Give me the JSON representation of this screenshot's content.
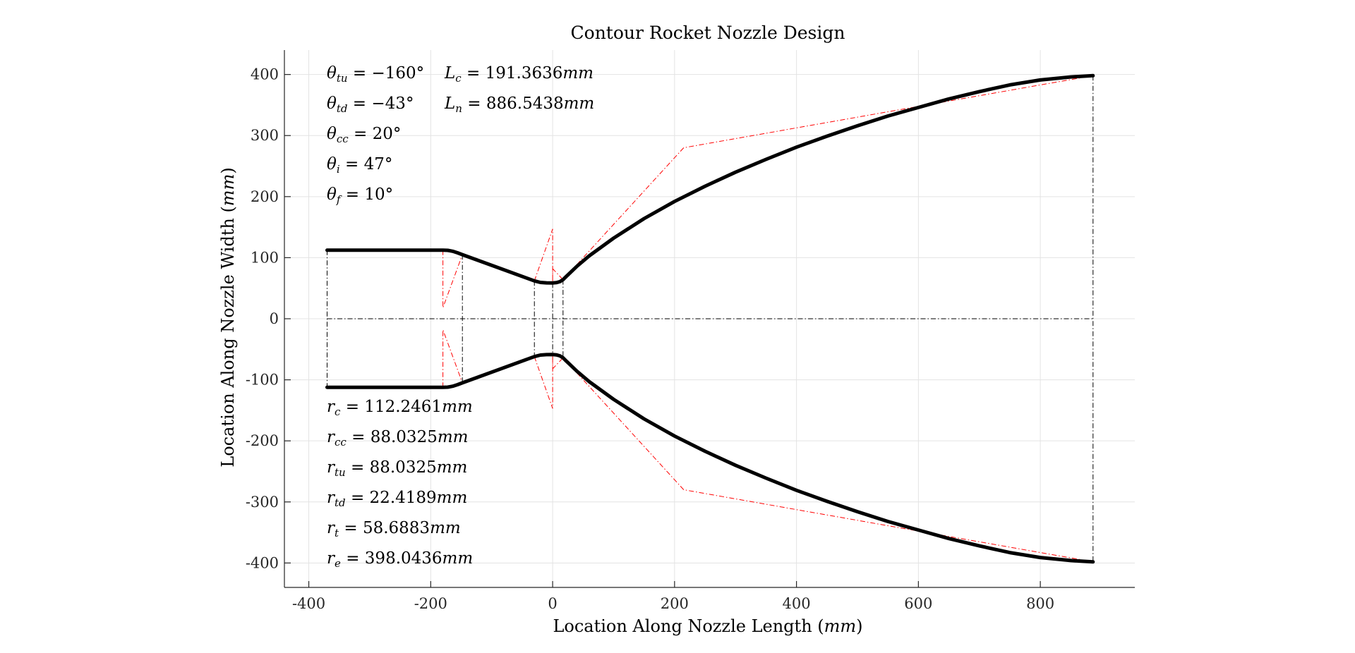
{
  "chart_data": {
    "type": "line",
    "title": "Contour Rocket Nozzle Design",
    "xlabel": "Location Along Nozzle Length",
    "xlabel_unit": "mm",
    "ylabel": "Location Along Nozzle Width",
    "ylabel_unit": "mm",
    "xlim": [
      -440,
      955
    ],
    "ylim": [
      -440,
      440
    ],
    "xticks": [
      -400,
      -200,
      0,
      200,
      400,
      600,
      800
    ],
    "yticks": [
      400,
      300,
      200,
      100,
      0,
      -100,
      -200,
      -300,
      -400
    ],
    "grid": true,
    "colors": {
      "contour": "#000000",
      "construction": "#ff0000",
      "reference": "#000000",
      "grid": "#e3e3e3"
    },
    "parameters": {
      "theta_tu": {
        "sym": "θ",
        "sub": "tu",
        "value": "−160°"
      },
      "theta_td": {
        "sym": "θ",
        "sub": "td",
        "value": "−43°"
      },
      "theta_cc": {
        "sym": "θ",
        "sub": "cc",
        "value": "20°"
      },
      "theta_i": {
        "sym": "θ",
        "sub": "i",
        "value": "47°"
      },
      "theta_f": {
        "sym": "θ",
        "sub": "f",
        "value": "10°"
      },
      "L_c": {
        "sym": "L",
        "sub": "c",
        "value": "191.3636",
        "unit": "mm"
      },
      "L_n": {
        "sym": "L",
        "sub": "n",
        "value": "886.5438",
        "unit": "mm"
      },
      "r_c": {
        "sym": "r",
        "sub": "c",
        "value": "112.2461",
        "unit": "mm"
      },
      "r_cc": {
        "sym": "r",
        "sub": "cc",
        "value": "88.0325",
        "unit": "mm"
      },
      "r_tu": {
        "sym": "r",
        "sub": "tu",
        "value": "88.0325",
        "unit": "mm"
      },
      "r_td": {
        "sym": "r",
        "sub": "td",
        "value": "22.4189",
        "unit": "mm"
      },
      "r_t": {
        "sym": "r",
        "sub": "t",
        "value": "58.6883",
        "unit": "mm"
      },
      "r_e": {
        "sym": "r",
        "sub": "e",
        "value": "398.0436",
        "unit": "mm"
      }
    },
    "series": [
      {
        "role": "nozzle-contour-upper",
        "points": [
          [
            -370,
            112.25
          ],
          [
            -180,
            112.25
          ],
          [
            -172,
            112
          ],
          [
            -164,
            110.5
          ],
          [
            -156,
            108
          ],
          [
            -148,
            105
          ],
          [
            -30,
            62
          ],
          [
            -20,
            59.5
          ],
          [
            -10,
            58.8
          ],
          [
            0,
            58.69
          ],
          [
            6,
            59.1
          ],
          [
            12,
            60.8
          ],
          [
            17,
            64
          ],
          [
            22,
            69
          ],
          [
            40,
            86
          ],
          [
            60,
            103
          ],
          [
            100,
            132
          ],
          [
            150,
            164
          ],
          [
            200,
            192
          ],
          [
            250,
            217
          ],
          [
            300,
            240
          ],
          [
            350,
            261
          ],
          [
            400,
            281
          ],
          [
            450,
            299
          ],
          [
            500,
            316
          ],
          [
            550,
            332
          ],
          [
            600,
            346
          ],
          [
            650,
            360
          ],
          [
            700,
            372
          ],
          [
            750,
            383
          ],
          [
            800,
            391
          ],
          [
            850,
            396
          ],
          [
            886.5,
            398.04
          ]
        ]
      },
      {
        "role": "nozzle-contour-lower",
        "points": [
          [
            -370,
            -112.25
          ],
          [
            -180,
            -112.25
          ],
          [
            -172,
            -112
          ],
          [
            -164,
            -110.5
          ],
          [
            -156,
            -108
          ],
          [
            -148,
            -105
          ],
          [
            -30,
            -62
          ],
          [
            -20,
            -59.5
          ],
          [
            -10,
            -58.8
          ],
          [
            0,
            -58.69
          ],
          [
            6,
            -59.1
          ],
          [
            12,
            -60.8
          ],
          [
            17,
            -64
          ],
          [
            22,
            -69
          ],
          [
            40,
            -86
          ],
          [
            60,
            -103
          ],
          [
            100,
            -132
          ],
          [
            150,
            -164
          ],
          [
            200,
            -192
          ],
          [
            250,
            -217
          ],
          [
            300,
            -240
          ],
          [
            350,
            -261
          ],
          [
            400,
            -281
          ],
          [
            450,
            -299
          ],
          [
            500,
            -316
          ],
          [
            550,
            -332
          ],
          [
            600,
            -346
          ],
          [
            650,
            -360
          ],
          [
            700,
            -372
          ],
          [
            750,
            -383
          ],
          [
            800,
            -391
          ],
          [
            850,
            -396
          ],
          [
            886.5,
            -398.04
          ]
        ]
      },
      {
        "role": "construction-red",
        "points": [
          [
            -180,
            112.25
          ],
          [
            -180,
            18
          ],
          [
            -148,
            105
          ]
        ]
      },
      {
        "role": "construction-red",
        "points": [
          [
            -180,
            -112.25
          ],
          [
            -180,
            -18
          ],
          [
            -148,
            -105
          ]
        ]
      },
      {
        "role": "construction-red",
        "points": [
          [
            -30,
            62
          ],
          [
            0,
            147
          ],
          [
            0,
            58.69
          ],
          [
            0,
            82
          ],
          [
            17,
            64
          ]
        ]
      },
      {
        "role": "construction-red",
        "points": [
          [
            -30,
            -62
          ],
          [
            0,
            -147
          ],
          [
            0,
            -58.69
          ],
          [
            0,
            -82
          ],
          [
            17,
            -64
          ]
        ]
      },
      {
        "role": "construction-red",
        "points": [
          [
            17,
            64
          ],
          [
            215,
            280
          ],
          [
            886.5,
            398.04
          ]
        ]
      },
      {
        "role": "construction-red",
        "points": [
          [
            17,
            -64
          ],
          [
            215,
            -280
          ],
          [
            886.5,
            -398.04
          ]
        ]
      },
      {
        "role": "construction-black",
        "points": [
          [
            -370,
            112.25
          ],
          [
            -370,
            -112.25
          ]
        ]
      },
      {
        "role": "construction-black",
        "points": [
          [
            -148,
            105
          ],
          [
            -148,
            -105
          ]
        ]
      },
      {
        "role": "construction-black",
        "points": [
          [
            -30,
            62
          ],
          [
            -30,
            -62
          ]
        ]
      },
      {
        "role": "construction-black",
        "points": [
          [
            0,
            58.69
          ],
          [
            0,
            -58.69
          ]
        ]
      },
      {
        "role": "construction-black",
        "points": [
          [
            17,
            64
          ],
          [
            17,
            -64
          ]
        ]
      },
      {
        "role": "construction-black",
        "points": [
          [
            886.5,
            398.04
          ],
          [
            886.5,
            -398.04
          ]
        ]
      },
      {
        "role": "centerline",
        "points": [
          [
            -370,
            0
          ],
          [
            886.5,
            0
          ]
        ]
      }
    ]
  }
}
